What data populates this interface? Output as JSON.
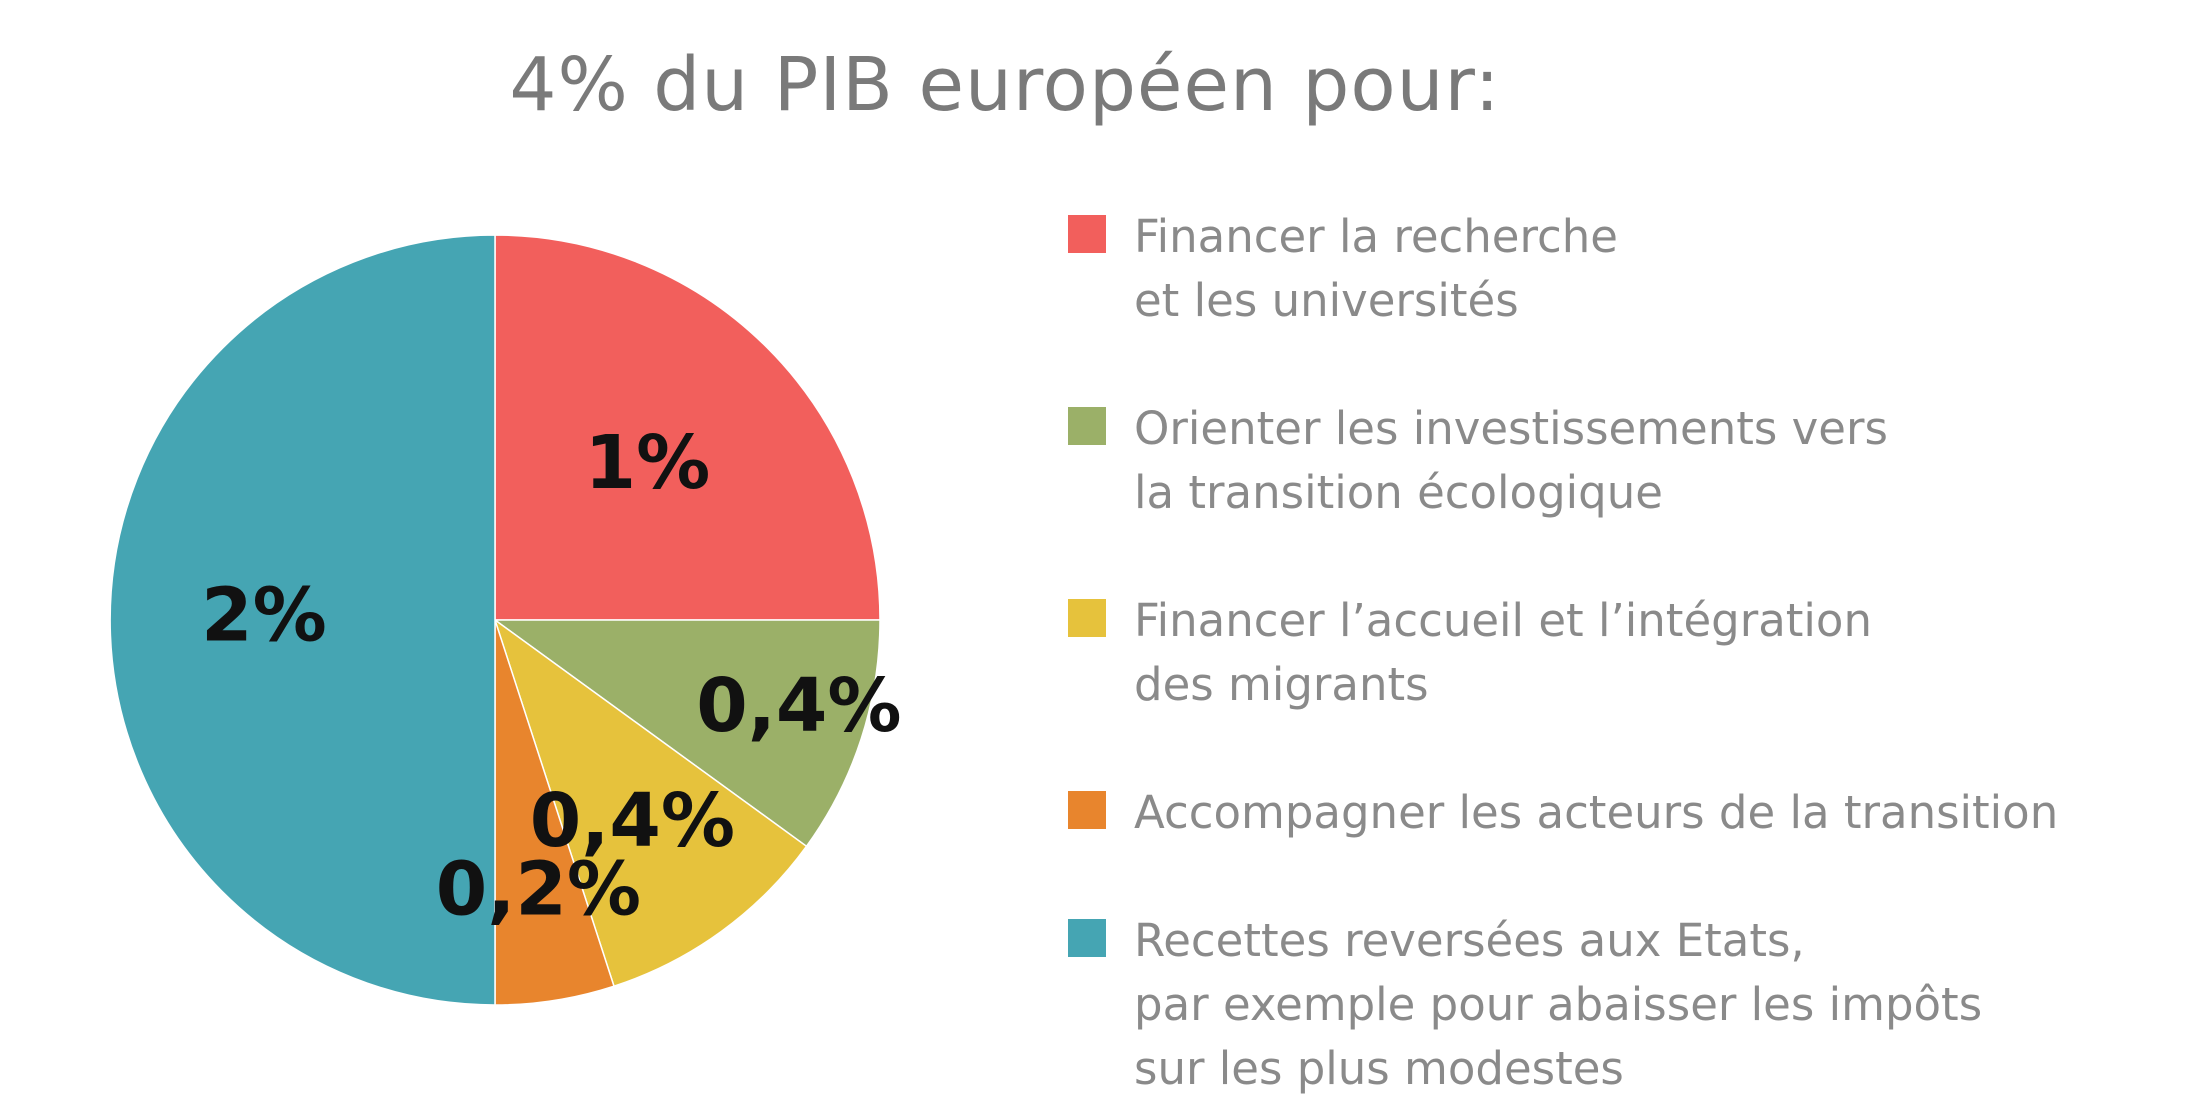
{
  "chart_data": {
    "type": "pie",
    "title": "4% du PIB européen pour:",
    "legend_position": "right",
    "slices": [
      {
        "name": "Financer la recherche\net les universités",
        "value": 1,
        "label": "1%",
        "color": "#f25f5c"
      },
      {
        "name": "Orienter les investissements vers\nla transition écologique",
        "value": 0.4,
        "label": "0,4%",
        "color": "#9bb068"
      },
      {
        "name": "Financer l’accueil et l’intégration\ndes migrants",
        "value": 0.4,
        "label": "0,4%",
        "color": "#e6c23c"
      },
      {
        "name": "Accompagner les acteurs de la transition",
        "value": 0.2,
        "label": "0,2%",
        "color": "#e8852d"
      },
      {
        "name": "Recettes reversées aux Etats,\npar exemple pour abaisser les impôts\nsur les plus modestes",
        "value": 2,
        "label": "2%",
        "color": "#45a5b3"
      }
    ]
  }
}
